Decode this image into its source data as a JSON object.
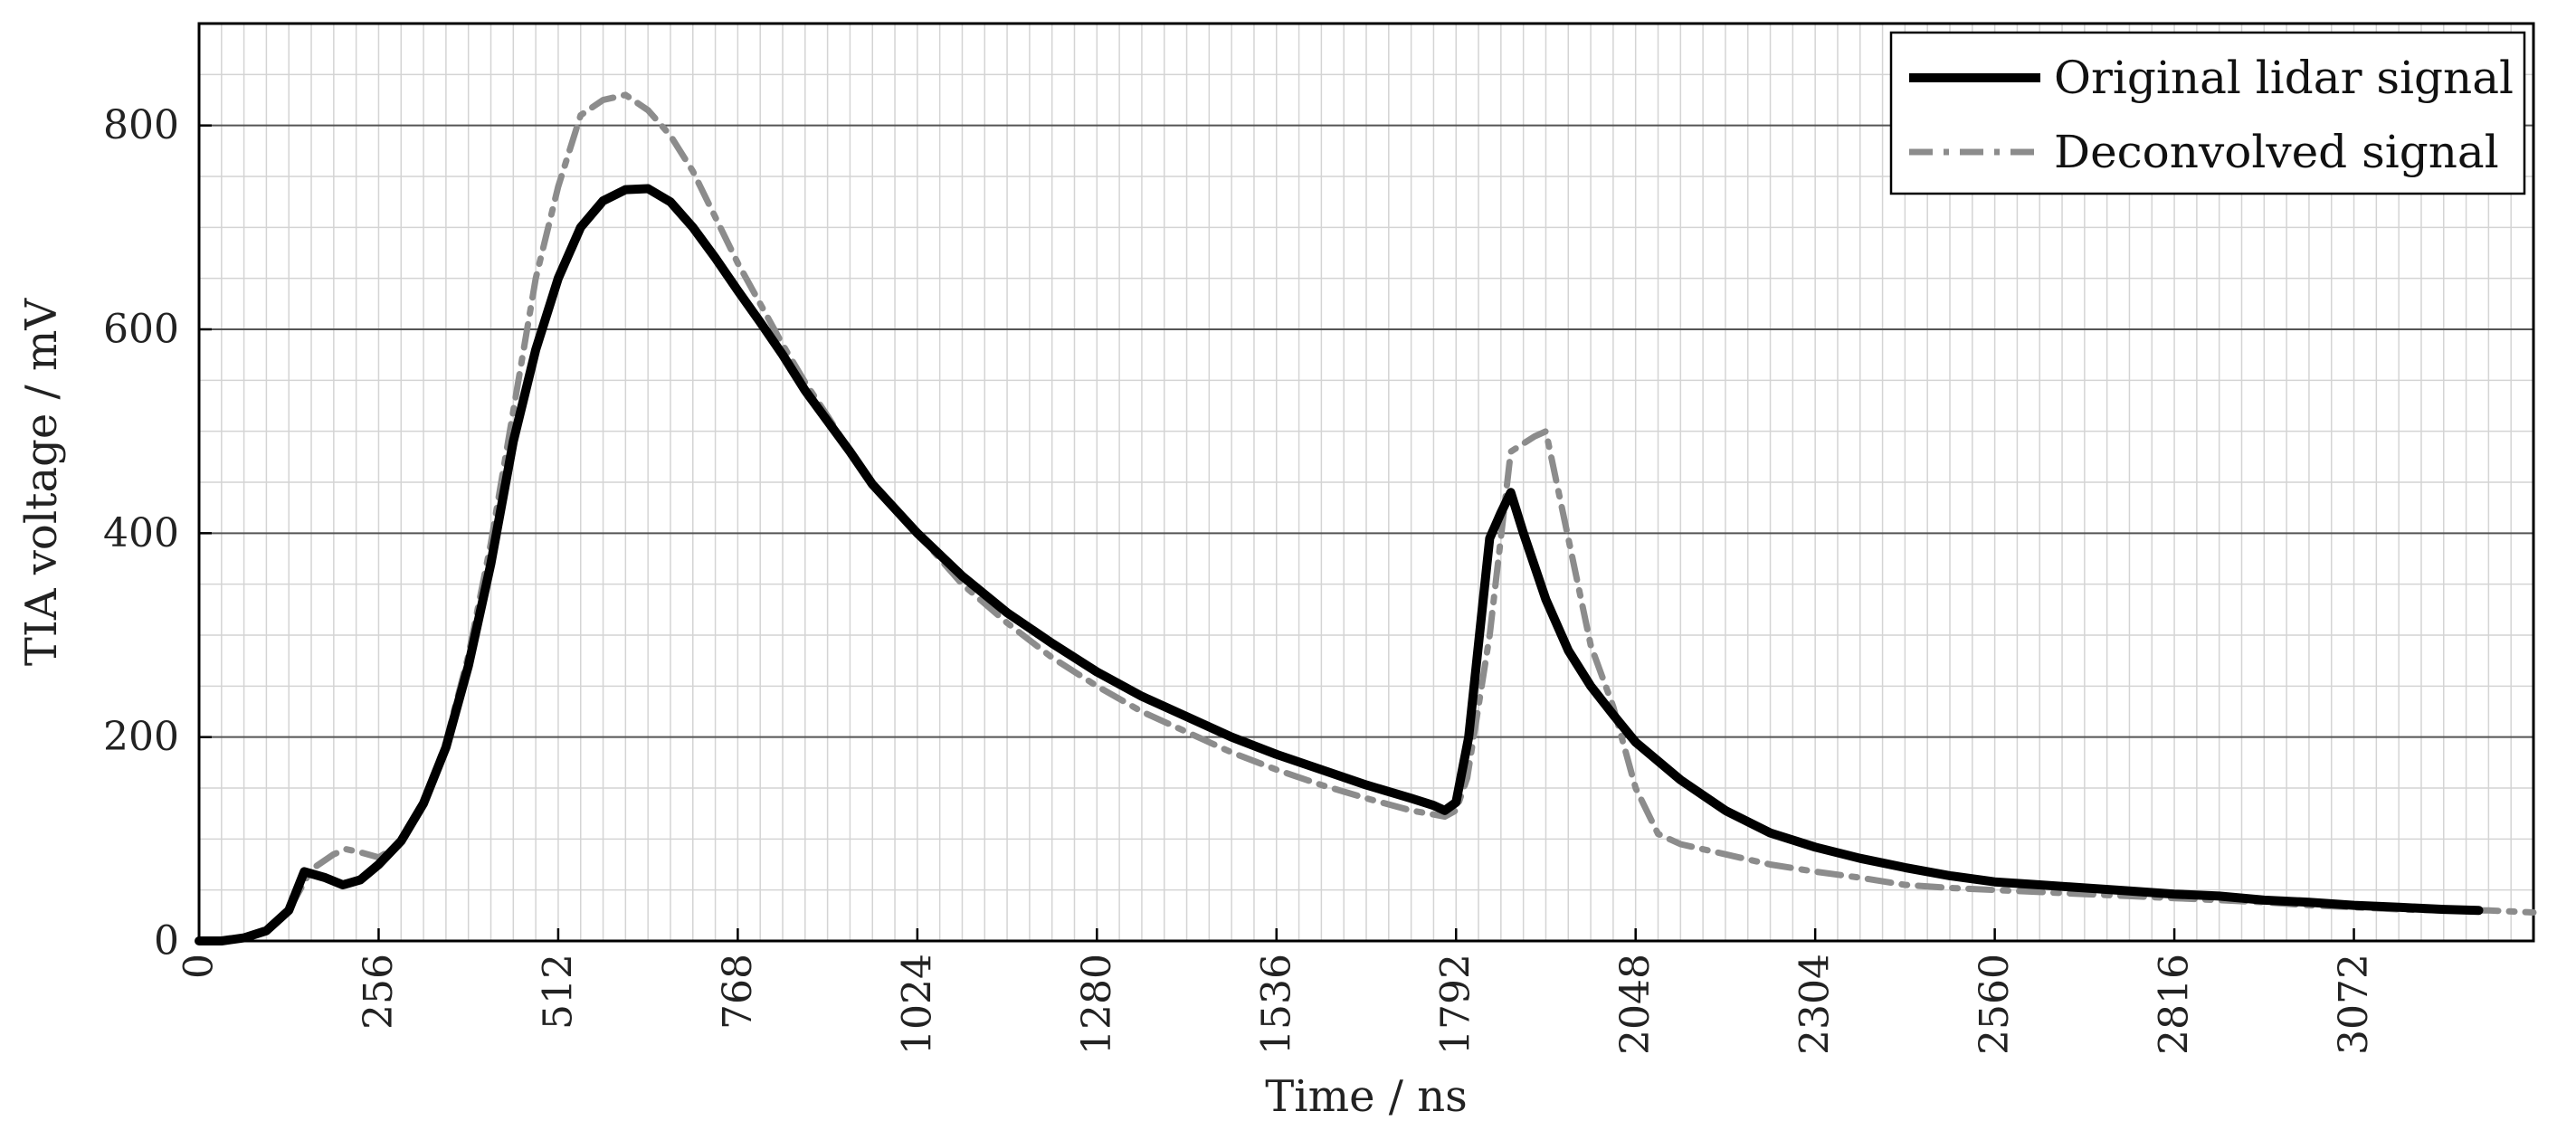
{
  "chart_data": {
    "type": "line",
    "title": "",
    "xlabel": "Time  / ns",
    "ylabel": "TIA voltage  / mV",
    "xlim": [
      0,
      3328
    ],
    "ylim": [
      0,
      900
    ],
    "xticks": [
      0,
      256,
      512,
      768,
      1024,
      1280,
      1536,
      1792,
      2048,
      2304,
      2560,
      2816,
      3072
    ],
    "yticks": [
      0,
      200,
      400,
      600,
      800
    ],
    "grid": true,
    "minor_grid_step_x": 32,
    "minor_grid_step_y": 50,
    "legend_position": "top-right",
    "series": [
      {
        "name": "Original lidar signal",
        "color": "#000000",
        "style": "solid",
        "points": [
          [
            0,
            0
          ],
          [
            32,
            0
          ],
          [
            64,
            3
          ],
          [
            96,
            10
          ],
          [
            128,
            30
          ],
          [
            150,
            68
          ],
          [
            180,
            62
          ],
          [
            205,
            55
          ],
          [
            230,
            60
          ],
          [
            256,
            75
          ],
          [
            288,
            98
          ],
          [
            320,
            135
          ],
          [
            352,
            190
          ],
          [
            384,
            270
          ],
          [
            416,
            370
          ],
          [
            448,
            490
          ],
          [
            480,
            580
          ],
          [
            512,
            650
          ],
          [
            544,
            700
          ],
          [
            576,
            726
          ],
          [
            608,
            737
          ],
          [
            640,
            738
          ],
          [
            672,
            725
          ],
          [
            704,
            700
          ],
          [
            736,
            670
          ],
          [
            768,
            638
          ],
          [
            800,
            607
          ],
          [
            832,
            575
          ],
          [
            864,
            540
          ],
          [
            896,
            510
          ],
          [
            928,
            480
          ],
          [
            960,
            448
          ],
          [
            1024,
            400
          ],
          [
            1088,
            358
          ],
          [
            1152,
            322
          ],
          [
            1216,
            292
          ],
          [
            1280,
            264
          ],
          [
            1344,
            240
          ],
          [
            1408,
            220
          ],
          [
            1472,
            200
          ],
          [
            1536,
            183
          ],
          [
            1600,
            168
          ],
          [
            1664,
            153
          ],
          [
            1728,
            140
          ],
          [
            1760,
            133
          ],
          [
            1776,
            128
          ],
          [
            1792,
            136
          ],
          [
            1810,
            200
          ],
          [
            1840,
            395
          ],
          [
            1856,
            420
          ],
          [
            1870,
            440
          ],
          [
            1888,
            400
          ],
          [
            1920,
            335
          ],
          [
            1952,
            285
          ],
          [
            1984,
            250
          ],
          [
            2016,
            222
          ],
          [
            2048,
            195
          ],
          [
            2112,
            158
          ],
          [
            2176,
            128
          ],
          [
            2240,
            106
          ],
          [
            2304,
            92
          ],
          [
            2368,
            81
          ],
          [
            2432,
            72
          ],
          [
            2496,
            64
          ],
          [
            2560,
            58
          ],
          [
            2624,
            55
          ],
          [
            2688,
            52
          ],
          [
            2752,
            49
          ],
          [
            2816,
            46
          ],
          [
            2880,
            44
          ],
          [
            2944,
            40
          ],
          [
            3008,
            38
          ],
          [
            3072,
            35
          ],
          [
            3136,
            33
          ],
          [
            3200,
            31
          ],
          [
            3250,
            30
          ]
        ]
      },
      {
        "name": "Deconvolved signal",
        "color": "#8c8c8c",
        "style": "dash-dot",
        "points": [
          [
            0,
            0
          ],
          [
            32,
            0
          ],
          [
            64,
            3
          ],
          [
            96,
            10
          ],
          [
            128,
            30
          ],
          [
            160,
            70
          ],
          [
            192,
            85
          ],
          [
            210,
            90
          ],
          [
            230,
            87
          ],
          [
            256,
            82
          ],
          [
            288,
            95
          ],
          [
            320,
            135
          ],
          [
            352,
            195
          ],
          [
            384,
            280
          ],
          [
            416,
            390
          ],
          [
            448,
            520
          ],
          [
            480,
            650
          ],
          [
            512,
            740
          ],
          [
            544,
            810
          ],
          [
            576,
            825
          ],
          [
            608,
            830
          ],
          [
            640,
            815
          ],
          [
            672,
            790
          ],
          [
            704,
            755
          ],
          [
            736,
            710
          ],
          [
            768,
            665
          ],
          [
            800,
            625
          ],
          [
            832,
            585
          ],
          [
            864,
            548
          ],
          [
            896,
            515
          ],
          [
            928,
            480
          ],
          [
            960,
            448
          ],
          [
            1024,
            400
          ],
          [
            1088,
            350
          ],
          [
            1152,
            312
          ],
          [
            1216,
            278
          ],
          [
            1280,
            250
          ],
          [
            1344,
            225
          ],
          [
            1408,
            205
          ],
          [
            1472,
            185
          ],
          [
            1536,
            168
          ],
          [
            1600,
            153
          ],
          [
            1664,
            140
          ],
          [
            1728,
            128
          ],
          [
            1776,
            122
          ],
          [
            1792,
            128
          ],
          [
            1808,
            160
          ],
          [
            1840,
            300
          ],
          [
            1870,
            480
          ],
          [
            1904,
            495
          ],
          [
            1920,
            500
          ],
          [
            1952,
            395
          ],
          [
            1984,
            290
          ],
          [
            2016,
            230
          ],
          [
            2048,
            150
          ],
          [
            2080,
            105
          ],
          [
            2112,
            95
          ],
          [
            2176,
            85
          ],
          [
            2240,
            75
          ],
          [
            2304,
            68
          ],
          [
            2368,
            62
          ],
          [
            2432,
            55
          ],
          [
            2496,
            52
          ],
          [
            2560,
            50
          ],
          [
            2624,
            48
          ],
          [
            2688,
            46
          ],
          [
            2752,
            44
          ],
          [
            2816,
            42
          ],
          [
            2880,
            40
          ],
          [
            2944,
            38
          ],
          [
            3008,
            35
          ],
          [
            3072,
            33
          ],
          [
            3136,
            31
          ],
          [
            3200,
            30
          ],
          [
            3264,
            30
          ],
          [
            3328,
            28
          ]
        ]
      }
    ]
  }
}
